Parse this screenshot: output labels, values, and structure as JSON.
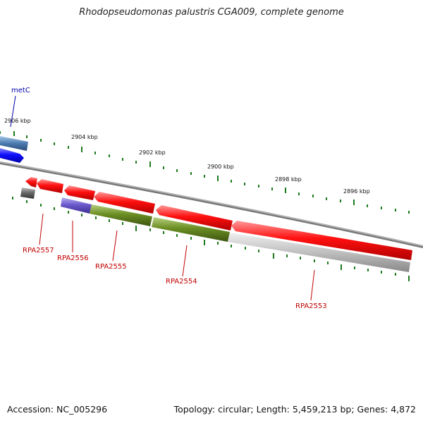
{
  "title": "Rhodopseudomonas palustris CGA009, complete genome",
  "accession": "Accession: NC_005296",
  "topology": "Topology: circular; Length: 5,459,213 bp; Genes: 4,872",
  "scale_labels": [
    "2906 kbp",
    "2904 kbp",
    "2902 kbp",
    "2900 kbp",
    "2898 kbp",
    "2896 kbp"
  ],
  "gene_labels": [
    "metC",
    "RPA2557",
    "RPA2556",
    "RPA2555",
    "RPA2554",
    "RPA2553"
  ],
  "colors": {
    "backbone": "#7a7a7a",
    "cds": "#ff1a1a",
    "cds_blue": "#1a1aff",
    "cds_steel": "#4a7ab0",
    "cog_olive": "#6b8e23",
    "cog_purple": "#6a5acd",
    "cog_gray": "#c0c0c0",
    "tick": "#1e7a1e",
    "gene_label": "#c00000",
    "metC_label": "#0000aa"
  }
}
